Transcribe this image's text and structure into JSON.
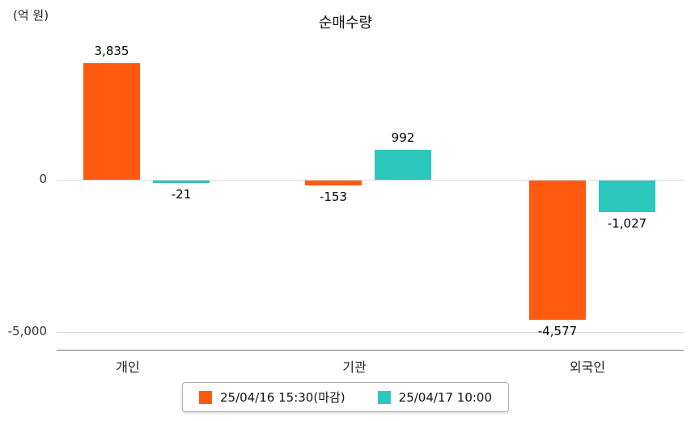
{
  "title": "순매수량",
  "unit_label": "(억 원)",
  "axis": {
    "y_tick_labels": [
      "0",
      "-5,000"
    ],
    "y_tick_values": [
      0,
      -5000
    ]
  },
  "legend": [
    {
      "label": "25/04/16 15:30(마감)",
      "color": "#ff5a0f"
    },
    {
      "label": "25/04/17 10:00",
      "color": "#2cc7bd"
    }
  ],
  "colors": {
    "series1": "#ff5a0f",
    "series2": "#2cc7bd",
    "gridline": "#d9d9d9",
    "axis": "#777777"
  },
  "chart_data": {
    "type": "bar",
    "title": "순매수량",
    "ylabel": "(억 원)",
    "categories": [
      "개인",
      "기관",
      "외국인"
    ],
    "series": [
      {
        "name": "25/04/16 15:30(마감)",
        "color": "#ff5a0f",
        "values": [
          3835,
          -153,
          -4577
        ]
      },
      {
        "name": "25/04/17 10:00",
        "color": "#2cc7bd",
        "values": [
          -21,
          992,
          -1027
        ]
      }
    ],
    "value_labels": [
      [
        "3,835",
        "-153",
        "-4,577"
      ],
      [
        "-21",
        "992",
        "-1,027"
      ]
    ],
    "ylim": [
      -5500,
      4300
    ],
    "y_gridlines": [
      0,
      -5000
    ],
    "grid": true,
    "legend_position": "bottom"
  }
}
